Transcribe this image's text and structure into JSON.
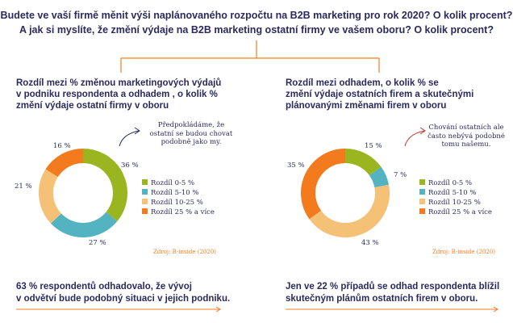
{
  "question": {
    "line1": "Budete ve vaší firmě měnit výši naplánovaného rozpočtu na B2B marketing pro rok 2020? O kolik procent?",
    "line2": "A jak si myslíte, že změní výdaje na B2B marketing ostatní firmy ve vašem oboru? O kolik procent?"
  },
  "colors": {
    "text": "#2b2a5e",
    "accent": "#f47c20",
    "green": "#9ab520",
    "blue": "#54b3c1",
    "peach": "#f5c177",
    "orange": "#f47a1e"
  },
  "legend": [
    {
      "label": "Rozdíl 0-5 %",
      "color": "#9ab520"
    },
    {
      "label": "Rozdíl 5-10 %",
      "color": "#54b3c1"
    },
    {
      "label": "Rozdíl 10-25 %",
      "color": "#f5c177"
    },
    {
      "label": "Rozdíl 25 % a více",
      "color": "#f47a1e"
    }
  ],
  "chart_data": [
    {
      "type": "pie",
      "title": "Rozdíl mezi % změnou marketingových výdajů v podniku respondenta a odhadem , o kolik % změní výdaje ostatní firmy v oboru",
      "title_lines": [
        "Rozdíl mezi % změnou marketingových výdajů",
        "v  podniku respondenta a odhadem , o kolik %",
        "změní výdaje ostatní firmy v oboru"
      ],
      "categories": [
        "Rozdíl 0-5 %",
        "Rozdíl 5-10 %",
        "Rozdíl 10-25 %",
        "Rozdíl 25 % a více"
      ],
      "values": [
        36,
        27,
        21,
        16
      ],
      "labels": [
        "36 %",
        "27 %",
        "21 %",
        "16 %"
      ],
      "annotation_lines": [
        "Předpokládáme, že",
        "ostatní se budou chovat",
        "podobně jako my."
      ],
      "source": "Zdroj: B-inside (2020)",
      "conclusion_lines": [
        "63 % respondentů odhadovalo, že vývoj",
        "v odvětví bude podobný situaci v jejich podniku."
      ]
    },
    {
      "type": "pie",
      "title": "Rozdíl mezi odhadem, o kolik % se změní výdaje ostatních firem a skutečnými plánovanými změnami firem v oboru",
      "title_lines": [
        "Rozdíl mezi odhadem, o kolik % se",
        "změní výdaje ostatních firem a skutečnými",
        "plánovanými změnami firem v oboru"
      ],
      "categories": [
        "Rozdíl 0-5 %",
        "Rozdíl 5-10 %",
        "Rozdíl 10-25 %",
        "Rozdíl 25 % a více"
      ],
      "values": [
        15,
        7,
        43,
        35
      ],
      "labels": [
        "15 %",
        "7 %",
        "43 %",
        "35 %"
      ],
      "annotation_lines": [
        "Chování ostatních ale",
        "často nebývá podobné",
        "tomu našemu."
      ],
      "source": "Zdroj: B-inside (2020)",
      "conclusion_lines": [
        "Jen ve 22 % případů se odhad respondenta blížil",
        "skutečným plánům ostatních firem v oboru."
      ]
    }
  ]
}
